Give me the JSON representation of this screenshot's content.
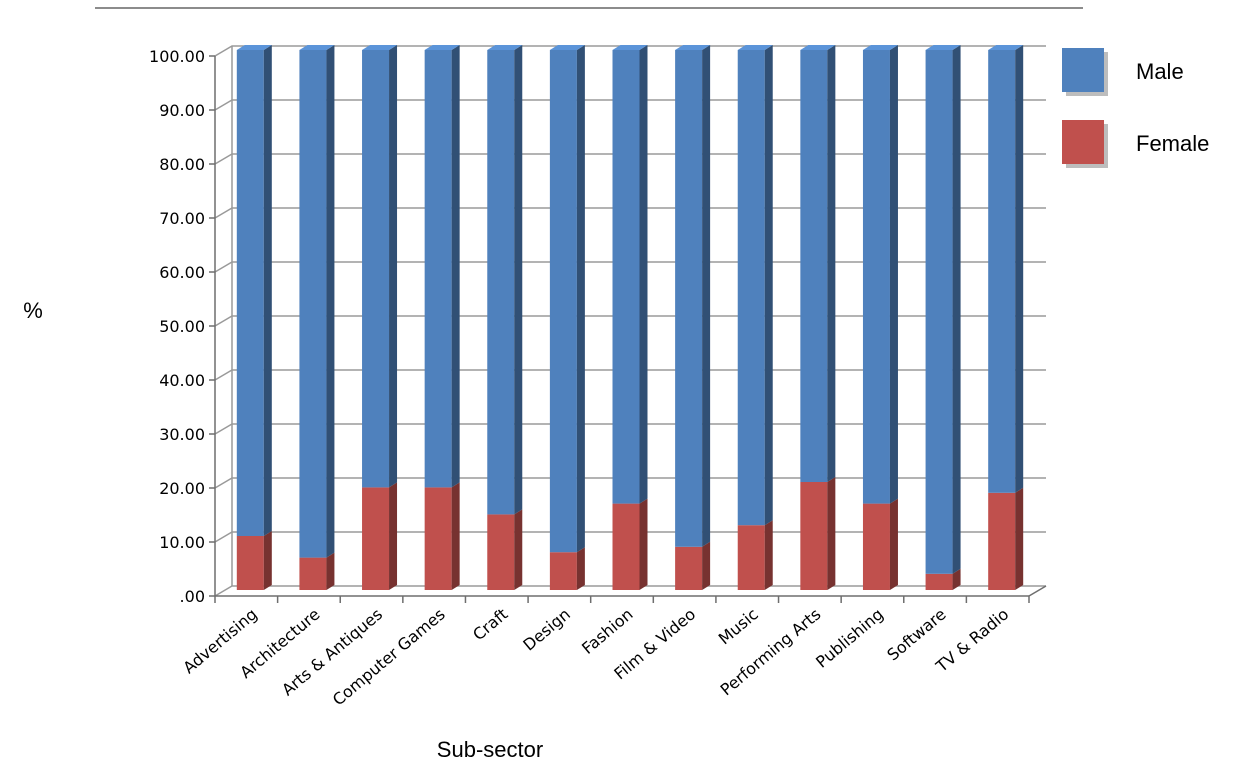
{
  "chart_data": {
    "type": "bar",
    "stacked": true,
    "three_d": true,
    "categories": [
      "Advertising",
      "Architecture",
      "Arts & Antiques",
      "Computer Games",
      "Craft",
      "Design",
      "Fashion",
      "Film & Video",
      "Music",
      "Performing Arts",
      "Publishing",
      "Software",
      "TV & Radio"
    ],
    "series": [
      {
        "name": "Female",
        "color": "#c0504d",
        "values": [
          10,
          6,
          19,
          19,
          14,
          7,
          16,
          8,
          12,
          20,
          16,
          3,
          18
        ]
      },
      {
        "name": "Male",
        "color": "#4f81bd",
        "values": [
          90,
          94,
          81,
          81,
          86,
          93,
          84,
          92,
          88,
          80,
          84,
          97,
          82
        ]
      }
    ],
    "legend_order": [
      "Male",
      "Female"
    ],
    "legend_position": "right",
    "xlabel": "Sub-sector",
    "ylabel": "%",
    "ylim": [
      0,
      100
    ],
    "yticks": [
      ".00",
      "10.00",
      "20.00",
      "30.00",
      "40.00",
      "50.00",
      "60.00",
      "70.00",
      "80.00",
      "90.00",
      "100.00"
    ],
    "grid": true
  }
}
